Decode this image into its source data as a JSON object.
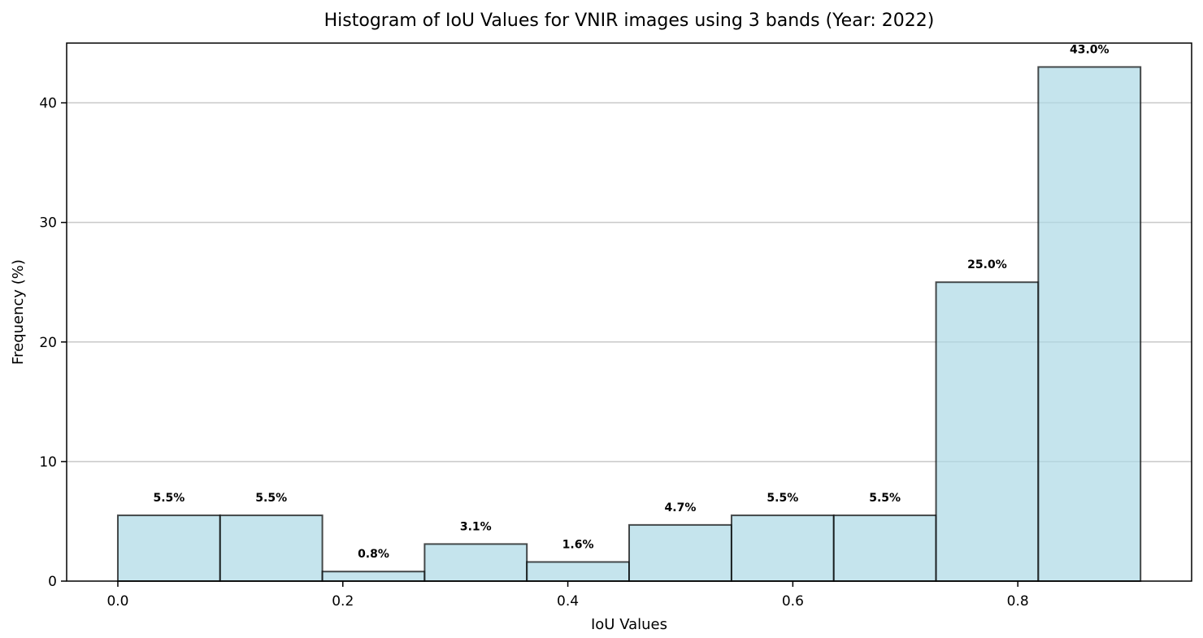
{
  "chart_data": {
    "type": "bar",
    "title": "Histogram of IoU Values for VNIR images using 3 bands (Year: 2022)",
    "xlabel": "IoU Values",
    "ylabel": "Frequency (%)",
    "bins": [
      {
        "start": 0.0,
        "end": 0.0909,
        "value": 5.5,
        "label": "5.5%"
      },
      {
        "start": 0.0909,
        "end": 0.1818,
        "value": 5.5,
        "label": "5.5%"
      },
      {
        "start": 0.1818,
        "end": 0.2727,
        "value": 0.8,
        "label": "0.8%"
      },
      {
        "start": 0.2727,
        "end": 0.3636,
        "value": 3.1,
        "label": "3.1%"
      },
      {
        "start": 0.3636,
        "end": 0.4545,
        "value": 1.6,
        "label": "1.6%"
      },
      {
        "start": 0.4545,
        "end": 0.5455,
        "value": 4.7,
        "label": "4.7%"
      },
      {
        "start": 0.5455,
        "end": 0.6364,
        "value": 5.5,
        "label": "5.5%"
      },
      {
        "start": 0.6364,
        "end": 0.7273,
        "value": 5.5,
        "label": "5.5%"
      },
      {
        "start": 0.7273,
        "end": 0.8182,
        "value": 25.0,
        "label": "25.0%"
      },
      {
        "start": 0.8182,
        "end": 0.9091,
        "value": 43.0,
        "label": "43.0%"
      }
    ],
    "xticks": [
      "0.0",
      "0.2",
      "0.4",
      "0.6",
      "0.8"
    ],
    "yticks": [
      "0",
      "10",
      "20",
      "30",
      "40"
    ],
    "xlim": [
      -0.0455,
      0.9545
    ],
    "ylim": [
      0,
      45
    ],
    "grid": "y-axis",
    "bar_color": "#add8e6",
    "edge_color": "#000000"
  }
}
